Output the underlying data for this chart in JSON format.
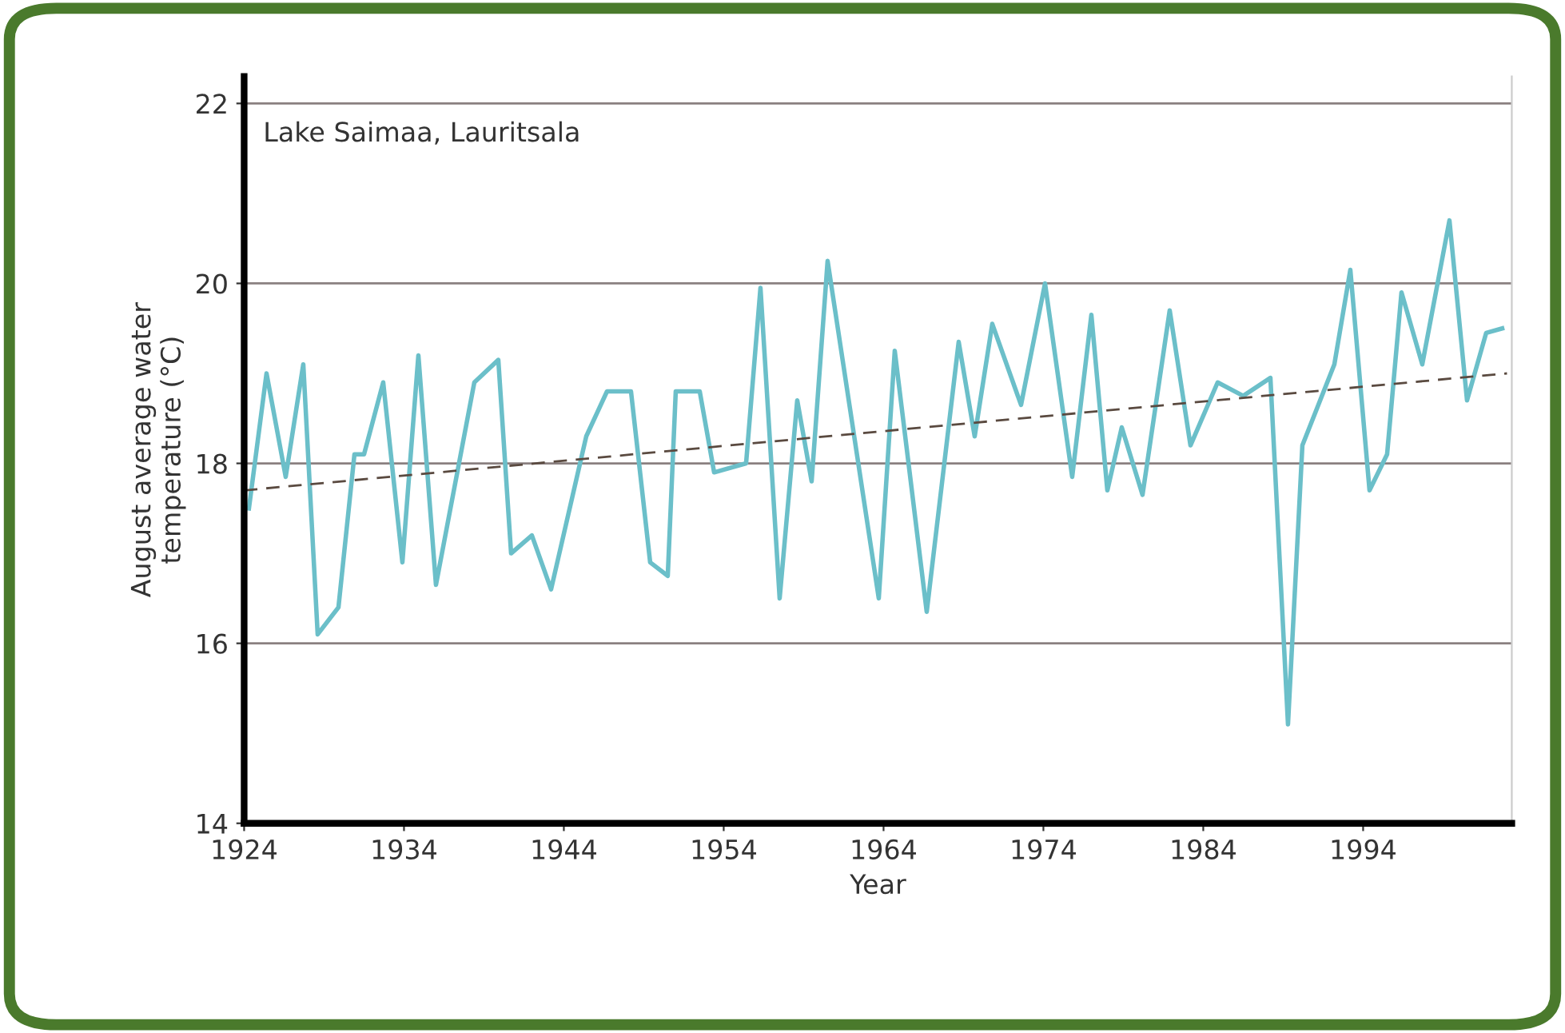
{
  "chart_data": {
    "type": "line",
    "xlabel": "Year",
    "ylabel": "August average water\ntemperature (°C)",
    "annotations": [
      "Lake Saimaa, Lauritsala"
    ],
    "series": [
      {
        "color": "#6bbfc9",
        "x": [
          1924.3,
          1925.4,
          1926.6,
          1927.7,
          1928.6,
          1929.9,
          1930.9,
          1931.5,
          1932.7,
          1933.9,
          1934.9,
          1936.0,
          1938.4,
          1939.9,
          1940.7,
          1942.0,
          1943.2,
          1945.4,
          1946.7,
          1948.2,
          1949.4,
          1950.5,
          1951.0,
          1952.5,
          1953.4,
          1955.4,
          1956.3,
          1957.5,
          1958.6,
          1959.5,
          1960.5,
          1963.7,
          1964.7,
          1966.7,
          1968.7,
          1969.7,
          1970.8,
          1972.6,
          1974.1,
          1975.8,
          1977.0,
          1978.0,
          1978.9,
          1980.2,
          1981.9,
          1983.2,
          1984.9,
          1986.5,
          1988.2,
          1989.3,
          1990.2,
          1992.2,
          1993.2,
          1994.4,
          1995.5,
          1996.4,
          1997.7,
          1999.4,
          2000.5,
          2001.7,
          2002.7
        ],
        "values": [
          17.5,
          19.0,
          17.85,
          19.1,
          16.1,
          16.4,
          18.1,
          18.1,
          18.9,
          16.9,
          19.2,
          16.65,
          18.9,
          19.15,
          17.0,
          17.2,
          16.6,
          18.3,
          18.8,
          18.8,
          16.9,
          16.75,
          18.8,
          18.8,
          17.9,
          18.0,
          19.95,
          16.5,
          18.7,
          17.8,
          20.25,
          16.5,
          19.25,
          16.35,
          19.35,
          18.3,
          19.55,
          18.65,
          20.0,
          17.85,
          19.65,
          17.7,
          18.4,
          17.65,
          19.7,
          18.2,
          18.9,
          18.75,
          18.95,
          15.1,
          18.2,
          19.1,
          20.15,
          17.7,
          18.1,
          19.9,
          19.1,
          20.7,
          18.7,
          19.45,
          19.5
        ]
      },
      {
        "color": "#5a4a40",
        "line_style": "dashed",
        "x": [
          1924,
          2003
        ],
        "values": [
          17.7,
          19.0
        ]
      }
    ],
    "xlim": [
      1924,
      2003.3
    ],
    "xticks": [
      1924,
      1934,
      1944,
      1954,
      1964,
      1974,
      1984,
      1994
    ],
    "ylim": [
      14,
      22.3
    ],
    "yticks": [
      14,
      16,
      18,
      20,
      22
    ],
    "grid": "y",
    "legend": false
  }
}
